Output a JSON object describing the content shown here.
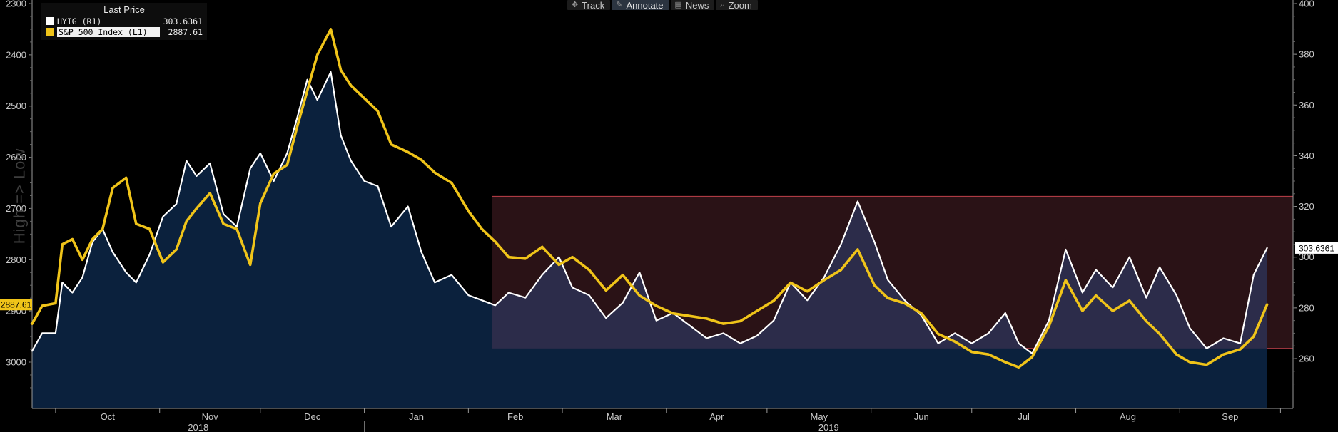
{
  "toolbar": {
    "items": [
      {
        "label": "Track",
        "icon": "crosshair-icon",
        "active": false
      },
      {
        "label": "Annotate",
        "icon": "pencil-icon",
        "active": true
      },
      {
        "label": "News",
        "icon": "news-icon",
        "active": false
      },
      {
        "label": "Zoom",
        "icon": "magnifier-icon",
        "active": false
      }
    ]
  },
  "legend": {
    "title": "Last Price",
    "series": [
      {
        "name": "HYIG  (R1)",
        "value": "303.6361",
        "color": "#ffffff"
      },
      {
        "name": "S&P 500 Index  (L1)",
        "value": "2887.61",
        "color": "#f0c419"
      }
    ]
  },
  "side_label": "High => Low",
  "price_tags": {
    "left": "2887.61",
    "right": "303.6361"
  },
  "chart_data": {
    "type": "line",
    "left_axis": {
      "ticks": [
        2300,
        2400,
        2500,
        2600,
        2700,
        2800,
        2900,
        3000
      ],
      "range": [
        2300,
        3050
      ],
      "inverted": true
    },
    "right_axis": {
      "ticks": [
        260,
        280,
        300,
        320,
        340,
        360,
        380,
        400
      ],
      "range": [
        248,
        400
      ]
    },
    "x_months": [
      "Oct",
      "Nov",
      "Dec",
      "Jan",
      "Feb",
      "Mar",
      "Apr",
      "May",
      "Jun",
      "Jul",
      "Aug",
      "Sep"
    ],
    "x_years": [
      "2018",
      "2019"
    ],
    "colors": {
      "hyig": "#ffffff",
      "spx": "#f0c419",
      "area": "#0c2340",
      "band": "#2a1216",
      "band_line": "#c0404a"
    },
    "band": {
      "x_start": "2019-02-08",
      "x_end": "2019-09-30",
      "upper": 324,
      "lower": 264
    },
    "series": [
      {
        "name": "HYIG  (R1)",
        "axis": "right",
        "points": [
          [
            "2018-09-24",
            263
          ],
          [
            "2018-09-27",
            270
          ],
          [
            "2018-10-01",
            270
          ],
          [
            "2018-10-03",
            290
          ],
          [
            "2018-10-06",
            286
          ],
          [
            "2018-10-09",
            292
          ],
          [
            "2018-10-12",
            306
          ],
          [
            "2018-10-15",
            311
          ],
          [
            "2018-10-18",
            302
          ],
          [
            "2018-10-22",
            294
          ],
          [
            "2018-10-25",
            290
          ],
          [
            "2018-10-29",
            301
          ],
          [
            "2018-11-02",
            316
          ],
          [
            "2018-11-06",
            321
          ],
          [
            "2018-11-09",
            338
          ],
          [
            "2018-11-12",
            332
          ],
          [
            "2018-11-16",
            337
          ],
          [
            "2018-11-20",
            317
          ],
          [
            "2018-11-24",
            312
          ],
          [
            "2018-11-28",
            335
          ],
          [
            "2018-12-01",
            341
          ],
          [
            "2018-12-05",
            330
          ],
          [
            "2018-12-09",
            341
          ],
          [
            "2018-12-12",
            355
          ],
          [
            "2018-12-15",
            370
          ],
          [
            "2018-12-18",
            362
          ],
          [
            "2018-12-22",
            373
          ],
          [
            "2018-12-25",
            348
          ],
          [
            "2018-12-28",
            338
          ],
          [
            "2019-01-01",
            330
          ],
          [
            "2019-01-05",
            328
          ],
          [
            "2019-01-09",
            312
          ],
          [
            "2019-01-14",
            320
          ],
          [
            "2019-01-18",
            302
          ],
          [
            "2019-01-22",
            290
          ],
          [
            "2019-01-27",
            293
          ],
          [
            "2019-02-01",
            285
          ],
          [
            "2019-02-05",
            283
          ],
          [
            "2019-02-09",
            281
          ],
          [
            "2019-02-13",
            286
          ],
          [
            "2019-02-18",
            284
          ],
          [
            "2019-02-23",
            293
          ],
          [
            "2019-02-28",
            300
          ],
          [
            "2019-03-04",
            288
          ],
          [
            "2019-03-09",
            285
          ],
          [
            "2019-03-14",
            276
          ],
          [
            "2019-03-19",
            282
          ],
          [
            "2019-03-24",
            294
          ],
          [
            "2019-03-29",
            275
          ],
          [
            "2019-04-03",
            278
          ],
          [
            "2019-04-08",
            273
          ],
          [
            "2019-04-13",
            268
          ],
          [
            "2019-04-18",
            270
          ],
          [
            "2019-04-23",
            266
          ],
          [
            "2019-04-28",
            269
          ],
          [
            "2019-05-03",
            275
          ],
          [
            "2019-05-08",
            290
          ],
          [
            "2019-05-13",
            283
          ],
          [
            "2019-05-18",
            292
          ],
          [
            "2019-05-23",
            305
          ],
          [
            "2019-05-28",
            322
          ],
          [
            "2019-06-02",
            306
          ],
          [
            "2019-06-06",
            291
          ],
          [
            "2019-06-11",
            283
          ],
          [
            "2019-06-16",
            277
          ],
          [
            "2019-06-21",
            266
          ],
          [
            "2019-06-26",
            270
          ],
          [
            "2019-07-01",
            266
          ],
          [
            "2019-07-06",
            270
          ],
          [
            "2019-07-11",
            278
          ],
          [
            "2019-07-15",
            266
          ],
          [
            "2019-07-19",
            262
          ],
          [
            "2019-07-24",
            275
          ],
          [
            "2019-07-29",
            303
          ],
          [
            "2019-08-03",
            286
          ],
          [
            "2019-08-07",
            295
          ],
          [
            "2019-08-12",
            288
          ],
          [
            "2019-08-17",
            300
          ],
          [
            "2019-08-22",
            284
          ],
          [
            "2019-08-26",
            296
          ],
          [
            "2019-08-31",
            285
          ],
          [
            "2019-09-04",
            272
          ],
          [
            "2019-09-09",
            264
          ],
          [
            "2019-09-14",
            268
          ],
          [
            "2019-09-19",
            266
          ],
          [
            "2019-09-23",
            293
          ],
          [
            "2019-09-27",
            303.6
          ]
        ]
      },
      {
        "name": "S&P 500 Index  (L1)",
        "axis": "left",
        "points": [
          [
            "2018-09-24",
            2925
          ],
          [
            "2018-09-27",
            2890
          ],
          [
            "2018-10-01",
            2885
          ],
          [
            "2018-10-03",
            2770
          ],
          [
            "2018-10-06",
            2760
          ],
          [
            "2018-10-09",
            2800
          ],
          [
            "2018-10-12",
            2760
          ],
          [
            "2018-10-15",
            2740
          ],
          [
            "2018-10-18",
            2660
          ],
          [
            "2018-10-22",
            2640
          ],
          [
            "2018-10-25",
            2730
          ],
          [
            "2018-10-29",
            2740
          ],
          [
            "2018-11-02",
            2805
          ],
          [
            "2018-11-06",
            2780
          ],
          [
            "2018-11-09",
            2725
          ],
          [
            "2018-11-12",
            2700
          ],
          [
            "2018-11-16",
            2670
          ],
          [
            "2018-11-20",
            2730
          ],
          [
            "2018-11-24",
            2740
          ],
          [
            "2018-11-28",
            2810
          ],
          [
            "2018-12-01",
            2690
          ],
          [
            "2018-12-05",
            2632
          ],
          [
            "2018-12-09",
            2615
          ],
          [
            "2018-12-12",
            2540
          ],
          [
            "2018-12-15",
            2470
          ],
          [
            "2018-12-18",
            2400
          ],
          [
            "2018-12-22",
            2350
          ],
          [
            "2018-12-25",
            2430
          ],
          [
            "2018-12-28",
            2460
          ],
          [
            "2019-01-01",
            2485
          ],
          [
            "2019-01-05",
            2510
          ],
          [
            "2019-01-09",
            2575
          ],
          [
            "2019-01-14",
            2590
          ],
          [
            "2019-01-18",
            2605
          ],
          [
            "2019-01-22",
            2630
          ],
          [
            "2019-01-27",
            2650
          ],
          [
            "2019-02-01",
            2705
          ],
          [
            "2019-02-05",
            2740
          ],
          [
            "2019-02-09",
            2765
          ],
          [
            "2019-02-13",
            2795
          ],
          [
            "2019-02-18",
            2798
          ],
          [
            "2019-02-23",
            2775
          ],
          [
            "2019-02-28",
            2810
          ],
          [
            "2019-03-04",
            2795
          ],
          [
            "2019-03-09",
            2820
          ],
          [
            "2019-03-14",
            2860
          ],
          [
            "2019-03-19",
            2830
          ],
          [
            "2019-03-24",
            2870
          ],
          [
            "2019-03-29",
            2890
          ],
          [
            "2019-04-03",
            2905
          ],
          [
            "2019-04-08",
            2910
          ],
          [
            "2019-04-13",
            2915
          ],
          [
            "2019-04-18",
            2925
          ],
          [
            "2019-04-23",
            2920
          ],
          [
            "2019-04-28",
            2900
          ],
          [
            "2019-05-03",
            2880
          ],
          [
            "2019-05-08",
            2845
          ],
          [
            "2019-05-13",
            2862
          ],
          [
            "2019-05-18",
            2840
          ],
          [
            "2019-05-23",
            2820
          ],
          [
            "2019-05-28",
            2780
          ],
          [
            "2019-06-02",
            2850
          ],
          [
            "2019-06-06",
            2875
          ],
          [
            "2019-06-11",
            2885
          ],
          [
            "2019-06-16",
            2905
          ],
          [
            "2019-06-21",
            2945
          ],
          [
            "2019-06-26",
            2960
          ],
          [
            "2019-07-01",
            2980
          ],
          [
            "2019-07-06",
            2985
          ],
          [
            "2019-07-11",
            3000
          ],
          [
            "2019-07-15",
            3010
          ],
          [
            "2019-07-19",
            2990
          ],
          [
            "2019-07-24",
            2930
          ],
          [
            "2019-07-29",
            2840
          ],
          [
            "2019-08-03",
            2900
          ],
          [
            "2019-08-07",
            2870
          ],
          [
            "2019-08-12",
            2900
          ],
          [
            "2019-08-17",
            2880
          ],
          [
            "2019-08-22",
            2920
          ],
          [
            "2019-08-26",
            2945
          ],
          [
            "2019-08-31",
            2985
          ],
          [
            "2019-09-04",
            3000
          ],
          [
            "2019-09-09",
            3005
          ],
          [
            "2019-09-14",
            2985
          ],
          [
            "2019-09-19",
            2975
          ],
          [
            "2019-09-23",
            2950
          ],
          [
            "2019-09-27",
            2887.61
          ]
        ]
      }
    ]
  }
}
